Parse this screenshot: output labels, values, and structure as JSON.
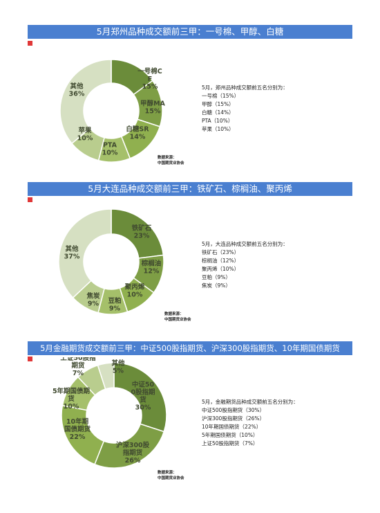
{
  "charts": [
    {
      "title": "5月郑州品种成交额前三甲：一号棉、甲醇、白糖",
      "intro": "5月，郑州品种成交额前五名分别为：",
      "items": [
        "一号棉（15%）",
        "甲醇（15%）",
        "白糖（14%）",
        "PTA（10%）",
        "苹果（10%）"
      ],
      "source_label": "数据来源：",
      "source_org": "中国期货业协会"
    },
    {
      "title": "5月大连品种成交额前三甲：铁矿石、棕榈油、聚丙烯",
      "intro": "5月，大连品种成交额前五名分别为：",
      "items": [
        "铁矿石（23%）",
        "棕榈油（12%）",
        "聚丙烯（10%）",
        "豆粕（9%）",
        "焦炭（9%）"
      ],
      "source_label": "数据来源：",
      "source_org": "中国期货业协会"
    },
    {
      "title": "5月金融期货成交额前三甲：中证500股指期货、沪深300股指期货、10年期国债期货",
      "intro": "5月，金融期货品种成交额前五名分别为：",
      "items": [
        "中证500股指期货（30%）",
        "沪深300股指期货（26%）",
        "10年期国债期货（22%）",
        "5年期国债期货（10%）",
        "上证50股指期货（7%）"
      ],
      "source_label": "数据来源：",
      "source_org": "中国期货业协会"
    }
  ],
  "chart_data": [
    {
      "type": "pie",
      "categories": [
        "一号棉CF",
        "甲醇MA",
        "白糖SR",
        "PTA",
        "苹果",
        "其他"
      ],
      "values": [
        15,
        15,
        14,
        10,
        10,
        36
      ],
      "labels": [
        "15%",
        "15%",
        "14%",
        "10%",
        "10%",
        "36%"
      ],
      "colors": [
        "#6b8c3a",
        "#7e9e45",
        "#90b04f",
        "#a5c06a",
        "#b9cd8e",
        "#d6e0c2"
      ]
    },
    {
      "type": "pie",
      "categories": [
        "铁矿石",
        "棕榈油",
        "聚丙烯",
        "豆粕",
        "焦炭",
        "其他"
      ],
      "values": [
        23,
        12,
        10,
        9,
        9,
        37
      ],
      "labels": [
        "23%",
        "12%",
        "10%",
        "9%",
        "9%",
        "37%"
      ],
      "colors": [
        "#6b8c3a",
        "#7e9e45",
        "#90b04f",
        "#a5c06a",
        "#b9cd8e",
        "#d6e0c2"
      ]
    },
    {
      "type": "pie",
      "categories": [
        "中证500股指期货",
        "沪深300股指期货",
        "10年期国债期货",
        "5年期国债期货",
        "上证50股指期货",
        "其他"
      ],
      "values": [
        30,
        26,
        22,
        10,
        7,
        5
      ],
      "labels": [
        "30%",
        "26%",
        "22%",
        "10%",
        "7%",
        "5%"
      ],
      "colors": [
        "#6b8c3a",
        "#7e9e45",
        "#90b04f",
        "#a5c06a",
        "#b9cd8e",
        "#d6e0c2"
      ]
    }
  ]
}
